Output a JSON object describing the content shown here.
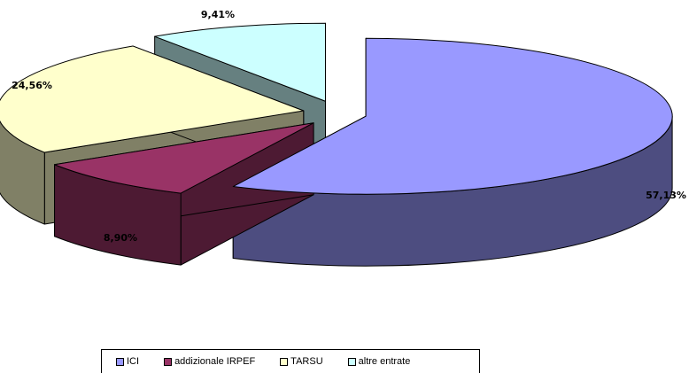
{
  "chart_data": {
    "type": "pie",
    "title": "",
    "categories": [
      "ICI",
      "addizionale IRPEF",
      "TARSU",
      "altre entrate"
    ],
    "values": [
      57.13,
      8.9,
      24.56,
      9.41
    ],
    "labels": [
      "57,13%",
      "8,90%",
      "24,56%",
      "9,41%"
    ],
    "colors": [
      "#9999ff",
      "#993366",
      "#ffffcc",
      "#ccffff"
    ],
    "exploded": true,
    "three_d": true,
    "legend_position": "bottom"
  }
}
